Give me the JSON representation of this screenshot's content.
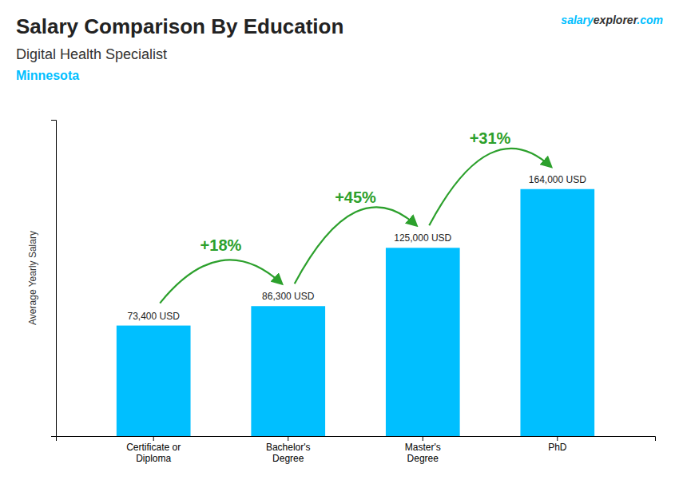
{
  "chart_data": {
    "type": "bar",
    "title": "Salary Comparison By Education",
    "subtitle": "Digital Health Specialist",
    "location": "Minnesota",
    "watermark": [
      "salary",
      "explorer",
      ".com"
    ],
    "y_label": "Average Yearly Salary",
    "categories": [
      "Certificate or\nDiploma",
      "Bachelor's\nDegree",
      "Master's\nDegree",
      "PhD"
    ],
    "values": [
      73400,
      86300,
      125000,
      164000
    ],
    "value_labels": [
      "73,400 USD",
      "86,300 USD",
      "125,000 USD",
      "164,000 USD"
    ],
    "data_labels": true,
    "annotations": [
      "+18%",
      "+45%",
      "+31%"
    ],
    "color": "#00BFFF",
    "ylim": [
      0,
      210000
    ],
    "grid": false,
    "tick_labels": "x"
  }
}
